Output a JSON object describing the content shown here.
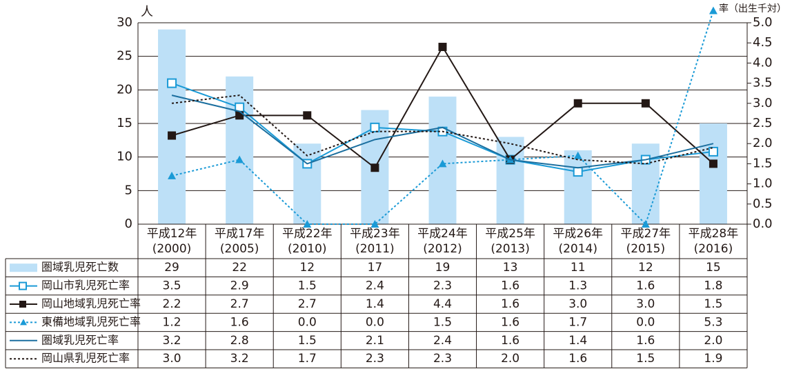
{
  "chart_data": {
    "type": "bar-line",
    "y_label": "人",
    "y2_label": "率（出生千対）",
    "categories": [
      [
        "平成12年",
        "(2000)"
      ],
      [
        "平成17年",
        "(2005)"
      ],
      [
        "平成22年",
        "(2010)"
      ],
      [
        "平成23年",
        "(2011)"
      ],
      [
        "平成24年",
        "(2012)"
      ],
      [
        "平成25年",
        "(2013)"
      ],
      [
        "平成26年",
        "(2014)"
      ],
      [
        "平成27年",
        "(2015)"
      ],
      [
        "平成28年",
        "(2016)"
      ]
    ],
    "ylim": [
      0,
      30
    ],
    "yticks": [
      0,
      5,
      10,
      15,
      20,
      25,
      30
    ],
    "y2lim": [
      0,
      5
    ],
    "y2ticks": [
      {
        "value": 0,
        "label": "0.0"
      },
      {
        "value": 0.5,
        "label": "0.5"
      },
      {
        "value": 1,
        "label": "1.0"
      },
      {
        "value": 1.5,
        "label": "1.5"
      },
      {
        "value": 2,
        "label": "2.0"
      },
      {
        "value": 2.5,
        "label": "2.5"
      },
      {
        "value": 3,
        "label": "3.0"
      },
      {
        "value": 3.5,
        "label": "3.5"
      },
      {
        "value": 4,
        "label": "4.0"
      },
      {
        "value": 4.5,
        "label": "4.5"
      },
      {
        "value": 5,
        "label": "5.0"
      }
    ],
    "grid": true,
    "series": [
      {
        "name": "圏域乳児死亡数",
        "type": "bar",
        "color": "#bde0f7",
        "values": [
          29,
          22,
          12,
          17,
          19,
          13,
          11,
          12,
          15
        ]
      },
      {
        "name": "岡山市乳児死亡率",
        "type": "line",
        "axis": "y2",
        "color": "#1a9ad6",
        "marker": "square-open",
        "line_style": "solid",
        "values": [
          3.5,
          2.9,
          1.5,
          2.4,
          2.3,
          1.6,
          1.3,
          1.6,
          1.8
        ],
        "value_labels": [
          "3.5",
          "2.9",
          "1.5",
          "2.4",
          "2.3",
          "1.6",
          "1.3",
          "1.6",
          "1.8"
        ]
      },
      {
        "name": "岡山地域乳児死亡率",
        "type": "line",
        "axis": "y2",
        "color": "#231815",
        "marker": "square",
        "line_style": "solid",
        "values": [
          2.2,
          2.7,
          2.7,
          1.4,
          4.4,
          1.6,
          3.0,
          3.0,
          1.5
        ],
        "value_labels": [
          "2.2",
          "2.7",
          "2.7",
          "1.4",
          "4.4",
          "1.6",
          "3.0",
          "3.0",
          "1.5"
        ]
      },
      {
        "name": "東備地域乳児死亡率",
        "type": "line",
        "axis": "y2",
        "color": "#1a9ad6",
        "marker": "triangle",
        "line_style": "dotted",
        "values": [
          1.2,
          1.6,
          0.0,
          0.0,
          1.5,
          1.6,
          1.7,
          0.0,
          5.3
        ],
        "value_labels": [
          "1.2",
          "1.6",
          "0.0",
          "0.0",
          "1.5",
          "1.6",
          "1.7",
          "0.0",
          "5.3"
        ]
      },
      {
        "name": "圏域乳児死亡率",
        "type": "line",
        "axis": "y2",
        "color": "#1b6f9f",
        "marker": "none",
        "line_style": "solid",
        "values": [
          3.2,
          2.8,
          1.5,
          2.1,
          2.4,
          1.6,
          1.4,
          1.6,
          2.0
        ],
        "value_labels": [
          "3.2",
          "2.8",
          "1.5",
          "2.1",
          "2.4",
          "1.6",
          "1.4",
          "1.6",
          "2.0"
        ]
      },
      {
        "name": "岡山県乳児死亡率",
        "type": "line",
        "axis": "y2",
        "color": "#231815",
        "marker": "none",
        "line_style": "dotted",
        "values": [
          3.0,
          3.2,
          1.7,
          2.3,
          2.3,
          2.0,
          1.6,
          1.5,
          1.9
        ],
        "value_labels": [
          "3.0",
          "3.2",
          "1.7",
          "2.3",
          "2.3",
          "2.0",
          "1.6",
          "1.5",
          "1.9"
        ]
      }
    ]
  }
}
